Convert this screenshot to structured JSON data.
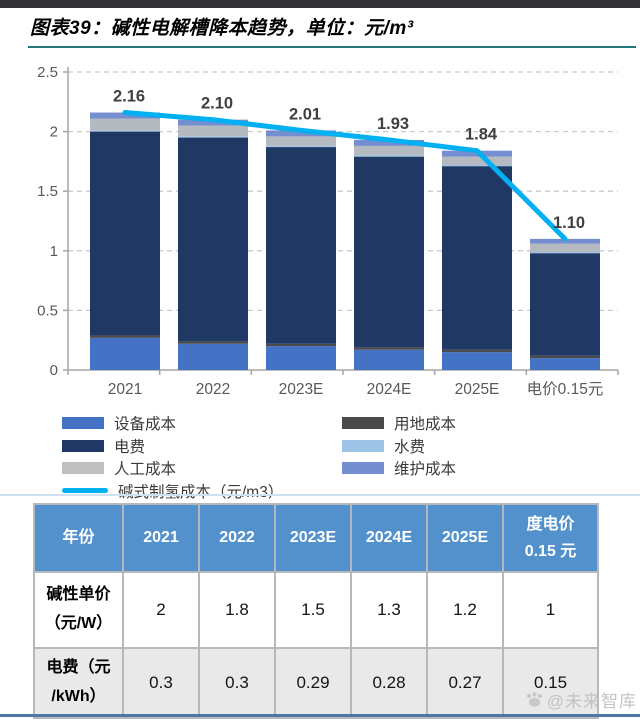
{
  "page": {
    "title": "图表39：碱性电解槽降本趋势，单位：元/m³",
    "watermark": "@未来智库"
  },
  "colors": {
    "accent_line": "#00b0f0",
    "table_header_bg": "#5291cc",
    "title_underline": "#23787c",
    "bottom_rule": "#4e77a6",
    "top_strip": "#323237",
    "axis_label": "#595959",
    "data_label": "#404040"
  },
  "chart_data": {
    "type": "bar",
    "subtype": "stacked-bars-with-line-overlay",
    "title": "碱性电解槽降本趋势",
    "unit": "元/m³",
    "categories": [
      "2021",
      "2022",
      "2023E",
      "2024E",
      "2025E",
      "电价0.15元"
    ],
    "series": [
      {
        "name": "设备成本",
        "color": "#4472c4",
        "values": [
          0.27,
          0.22,
          0.2,
          0.17,
          0.15,
          0.1
        ]
      },
      {
        "name": "用地成本",
        "color": "#4a4a4a",
        "values": [
          0.02,
          0.02,
          0.02,
          0.02,
          0.02,
          0.02
        ]
      },
      {
        "name": "电费",
        "color": "#1f3864",
        "values": [
          1.71,
          1.71,
          1.65,
          1.6,
          1.54,
          0.86
        ]
      },
      {
        "name": "水费",
        "color": "#9dc3e6",
        "values": [
          0.01,
          0.01,
          0.01,
          0.01,
          0.01,
          0.01
        ]
      },
      {
        "name": "人工成本",
        "color": "#b5bac1",
        "values": [
          0.1,
          0.09,
          0.08,
          0.08,
          0.07,
          0.07
        ]
      },
      {
        "name": "维护成本",
        "color": "#748ed0",
        "values": [
          0.05,
          0.05,
          0.05,
          0.05,
          0.05,
          0.04
        ]
      }
    ],
    "line_series": {
      "name": "碱式制氢成本（元/m3）",
      "color": "#00b0f0",
      "values": [
        2.16,
        2.1,
        2.01,
        1.93,
        1.84,
        1.1
      ]
    },
    "data_labels": [
      "2.16",
      "2.10",
      "2.01",
      "1.93",
      "1.84",
      "1.10"
    ],
    "ylim": [
      0,
      2.5
    ],
    "yticks": [
      "0",
      "0.5",
      "1",
      "1.5",
      "2",
      "2.5"
    ],
    "grid": "horizontal dashed",
    "legend_position": "bottom-left, two columns"
  },
  "legend": {
    "columns": [
      [
        {
          "label": "设备成本",
          "swatch": "box",
          "color": "#4472c4"
        },
        {
          "label": "电费",
          "swatch": "box",
          "color": "#1f3864"
        },
        {
          "label": "人工成本",
          "swatch": "box",
          "color": "#bfbfbf"
        },
        {
          "label": "碱式制氢成本（元/m3）",
          "swatch": "line",
          "color": "#00b0f0"
        }
      ],
      [
        {
          "label": "用地成本",
          "swatch": "box",
          "color": "#4a4a4a"
        },
        {
          "label": "水费",
          "swatch": "box",
          "color": "#9dc3e6"
        },
        {
          "label": "维护成本",
          "swatch": "box",
          "color": "#748ed0"
        }
      ]
    ]
  },
  "table": {
    "header": [
      [
        "年份"
      ],
      [
        "2021"
      ],
      [
        "2022"
      ],
      [
        "2023E"
      ],
      [
        "2024E"
      ],
      [
        "2025E"
      ],
      [
        "度电价",
        "0.15 元"
      ]
    ],
    "rows": [
      {
        "label": [
          "碱性单价",
          "（元/W）"
        ],
        "values": [
          "2",
          "1.8",
          "1.5",
          "1.3",
          "1.2",
          "1"
        ],
        "bg": "#ffffff"
      },
      {
        "label": [
          "电费（元",
          "/kWh）"
        ],
        "values": [
          "0.3",
          "0.3",
          "0.29",
          "0.28",
          "0.27",
          "0.15"
        ],
        "bg": "#e9e9e9"
      }
    ]
  }
}
